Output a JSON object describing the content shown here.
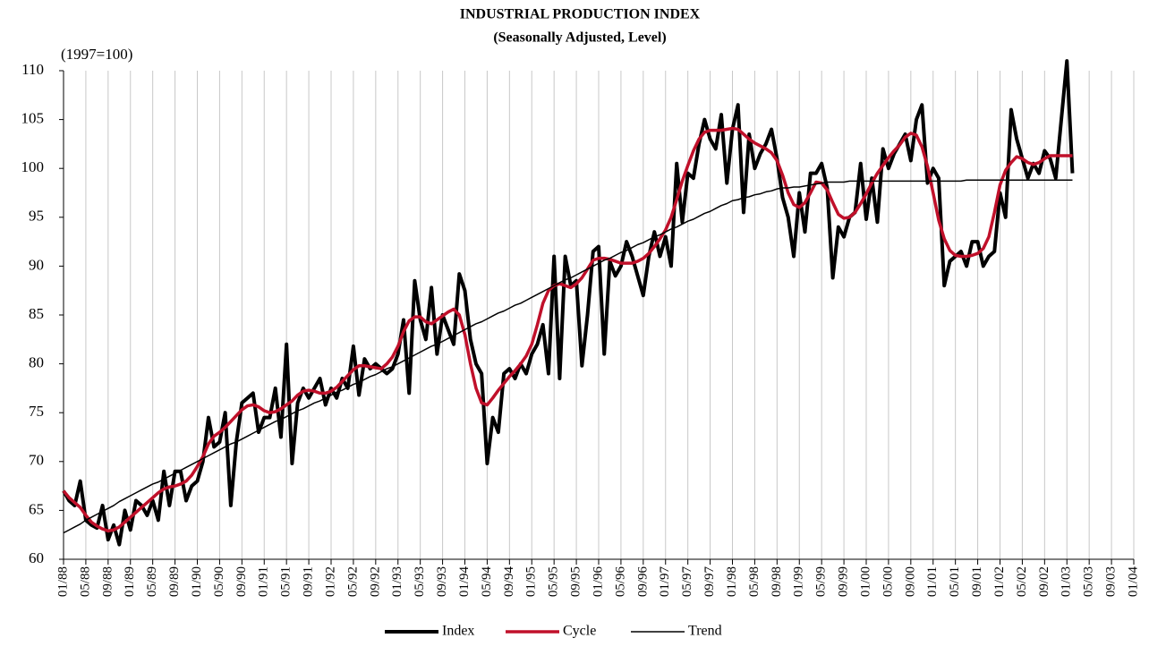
{
  "chart_data": {
    "type": "line",
    "title": "INDUSTRIAL PRODUCTION INDEX",
    "subtitle": "(Seasonally Adjusted, Level)",
    "y_label": "(1997=100)",
    "ylim": [
      60,
      110
    ],
    "yticks": [
      60,
      65,
      70,
      75,
      80,
      85,
      90,
      95,
      100,
      105,
      110
    ],
    "grid": true,
    "legend": "bottom",
    "categories": [
      "01/88",
      null,
      null,
      null,
      "05/88",
      null,
      null,
      null,
      "09/88",
      null,
      null,
      null,
      "01/89",
      null,
      null,
      null,
      "05/89",
      null,
      null,
      null,
      "09/89",
      null,
      null,
      null,
      "01/90",
      null,
      null,
      null,
      "05/90",
      null,
      null,
      null,
      "09/90",
      null,
      null,
      null,
      "01/91",
      null,
      null,
      null,
      "05/91",
      null,
      null,
      null,
      "09/91",
      null,
      null,
      null,
      "01/92",
      null,
      null,
      null,
      "05/92",
      null,
      null,
      null,
      "09/92",
      null,
      null,
      null,
      "01/93",
      null,
      null,
      null,
      "05/93",
      null,
      null,
      null,
      "09/93",
      null,
      null,
      null,
      "01/94",
      null,
      null,
      null,
      "05/94",
      null,
      null,
      null,
      "09/94",
      null,
      null,
      null,
      "01/95",
      null,
      null,
      null,
      "05/95",
      null,
      null,
      null,
      "09/95",
      null,
      null,
      null,
      "01/96",
      null,
      null,
      null,
      "05/96",
      null,
      null,
      null,
      "09/96",
      null,
      null,
      null,
      "01/97",
      null,
      null,
      null,
      "05/97",
      null,
      null,
      null,
      "09/97",
      null,
      null,
      null,
      "01/98",
      null,
      null,
      null,
      "05/98",
      null,
      null,
      null,
      "09/98",
      null,
      null,
      null,
      "01/99",
      null,
      null,
      null,
      "05/99",
      null,
      null,
      null,
      "09/99",
      null,
      null,
      null,
      "01/00",
      null,
      null,
      null,
      "05/00",
      null,
      null,
      null,
      "09/00",
      null,
      null,
      null,
      "01/01",
      null,
      null,
      null,
      "05/01",
      null,
      null,
      null,
      "09/01",
      null,
      null,
      null,
      "01/02",
      null,
      null,
      null,
      "05/02",
      null,
      null,
      null,
      "09/02",
      null,
      null,
      null,
      "01/03",
      null,
      null,
      null,
      "05/03",
      null,
      null,
      null,
      "09/03",
      null,
      null,
      null,
      "01/04"
    ],
    "series": [
      {
        "name": "Index",
        "color": "#000000",
        "width": 4,
        "values": [
          67,
          66,
          65.5,
          68,
          64,
          63.5,
          63.2,
          65.5,
          62,
          63.5,
          61.5,
          65,
          63,
          66,
          65.5,
          64.5,
          66,
          64,
          69,
          65.5,
          69,
          69,
          66,
          67.5,
          68,
          70,
          74.5,
          71.5,
          72,
          75,
          65.5,
          72,
          76,
          76.5,
          77,
          73,
          74.5,
          74.5,
          77.5,
          72.5,
          82,
          69.8,
          76,
          77.5,
          76.5,
          77.5,
          78.5,
          75.8,
          77.5,
          76.5,
          78.5,
          77.5,
          81.8,
          76.8,
          80.5,
          79.5,
          80,
          79.5,
          79,
          79.5,
          81,
          84.5,
          77,
          88.5,
          84.5,
          82.5,
          87.8,
          81,
          85,
          83.5,
          82,
          89.2,
          87.5,
          82.5,
          80,
          79,
          69.8,
          74.5,
          73,
          79,
          79.5,
          78.5,
          80,
          79,
          81,
          82,
          84,
          79,
          91,
          78.5,
          91,
          88,
          88.5,
          79.8,
          85,
          91.5,
          92,
          81,
          90.5,
          89,
          90,
          92.5,
          91,
          89,
          87,
          91,
          93.5,
          91,
          93,
          90,
          100.5,
          94.5,
          99.5,
          99,
          102.5,
          105,
          103,
          102,
          105.5,
          98.5,
          104,
          106.5,
          95.5,
          103.5,
          100,
          101.5,
          102.5,
          104,
          101,
          97,
          95,
          91,
          97.5,
          93.5,
          99.5,
          99.5,
          100.5,
          98,
          88.8,
          94,
          93,
          95,
          95.5,
          100.5,
          94.8,
          99,
          94.5,
          102,
          100,
          101.5,
          102.5,
          103.5,
          100.8,
          105,
          106.5,
          98.5,
          100,
          99,
          88,
          90.5,
          91,
          91.5,
          90,
          92.5,
          92.5,
          90,
          91,
          91.5,
          97.5,
          95,
          106,
          103,
          101,
          99,
          100.5,
          99.5,
          101.8,
          101,
          99,
          105,
          111,
          99.5,
          null,
          null,
          null,
          null,
          null,
          null,
          null,
          null,
          null,
          null,
          null
        ]
      },
      {
        "name": "Cycle",
        "color": "#c0102a",
        "width": 3.5,
        "values": [
          67,
          66.3,
          65.8,
          65.3,
          64.5,
          63.8,
          63.4,
          63.1,
          62.9,
          63,
          63.3,
          63.8,
          64.3,
          64.8,
          65.3,
          65.8,
          66.3,
          66.8,
          67.2,
          67.4,
          67.5,
          67.7,
          68,
          68.6,
          69.5,
          70.5,
          71.8,
          72.6,
          73,
          73.5,
          74.1,
          74.7,
          75.3,
          75.7,
          75.8,
          75.6,
          75.2,
          75,
          75.1,
          75.4,
          75.8,
          76.2,
          76.8,
          77.2,
          77.3,
          77.2,
          77,
          77,
          77.2,
          77.6,
          78.2,
          78.8,
          79.4,
          79.8,
          79.8,
          79.7,
          79.6,
          79.5,
          80,
          80.7,
          81.8,
          83.3,
          84.4,
          84.8,
          84.8,
          84.3,
          84.1,
          84.5,
          84.9,
          85.3,
          85.6,
          85,
          83,
          80,
          77.5,
          76,
          75.8,
          76.5,
          77.3,
          78,
          78.7,
          79.3,
          80,
          80.8,
          82,
          84,
          86.2,
          87.5,
          88,
          88.2,
          88,
          87.8,
          88.2,
          88.8,
          89.7,
          90.6,
          90.8,
          90.8,
          90.7,
          90.5,
          90.3,
          90.3,
          90.3,
          90.5,
          90.8,
          91.3,
          92,
          92.8,
          93.7,
          95,
          96.8,
          98.7,
          100.3,
          101.8,
          103,
          103.7,
          103.9,
          103.9,
          103.9,
          104,
          104.1,
          104,
          103.5,
          103,
          102.6,
          102.3,
          102,
          101.6,
          100.8,
          99.3,
          97.5,
          96.3,
          96,
          96.5,
          97.5,
          98.6,
          98.5,
          97.8,
          96.5,
          95.3,
          94.9,
          95,
          95.5,
          96.4,
          97.4,
          98.5,
          99.5,
          100.3,
          101.1,
          101.8,
          102.4,
          103.2,
          103.6,
          103.4,
          102.2,
          100.2,
          97.5,
          94.7,
          92.8,
          91.6,
          91.1,
          91,
          91,
          91.1,
          91.3,
          91.8,
          93,
          95.5,
          98.3,
          99.8,
          100.6,
          101.2,
          101,
          100.6,
          100.4,
          100.6,
          101,
          101.3,
          101.3,
          101.3,
          101.3,
          101.3,
          null,
          null,
          null,
          null,
          null,
          null,
          null,
          null,
          null,
          null,
          null
        ]
      },
      {
        "name": "Trend",
        "color": "#000000",
        "width": 1.5,
        "values": [
          62.7,
          63.0,
          63.3,
          63.6,
          64.0,
          64.3,
          64.6,
          64.9,
          65.2,
          65.5,
          65.9,
          66.2,
          66.5,
          66.8,
          67.1,
          67.4,
          67.7,
          67.9,
          68.2,
          68.5,
          68.8,
          69.1,
          69.4,
          69.7,
          70.0,
          70.3,
          70.6,
          70.9,
          71.2,
          71.5,
          71.8,
          72.0,
          72.3,
          72.6,
          72.9,
          73.2,
          73.5,
          73.8,
          74.1,
          74.3,
          74.6,
          74.9,
          75.2,
          75.4,
          75.7,
          76.0,
          76.2,
          76.5,
          76.8,
          77.1,
          77.3,
          77.6,
          77.9,
          78.1,
          78.4,
          78.7,
          78.9,
          79.2,
          79.5,
          79.7,
          80.0,
          80.3,
          80.6,
          80.9,
          81.2,
          81.5,
          81.8,
          82.0,
          82.3,
          82.6,
          82.9,
          83.2,
          83.5,
          83.8,
          84.1,
          84.3,
          84.6,
          84.9,
          85.2,
          85.4,
          85.7,
          86.0,
          86.2,
          86.5,
          86.8,
          87.1,
          87.4,
          87.7,
          88.0,
          88.3,
          88.6,
          88.8,
          89.1,
          89.4,
          89.7,
          90.0,
          90.3,
          90.6,
          90.8,
          91.1,
          91.4,
          91.6,
          91.9,
          92.2,
          92.4,
          92.7,
          93.0,
          93.2,
          93.5,
          93.8,
          94.0,
          94.3,
          94.6,
          94.8,
          95.1,
          95.4,
          95.6,
          95.9,
          96.2,
          96.4,
          96.7,
          96.8,
          97.0,
          97.1,
          97.3,
          97.4,
          97.6,
          97.7,
          97.9,
          98.0,
          98.0,
          98.1,
          98.1,
          98.2,
          98.3,
          98.4,
          98.5,
          98.6,
          98.6,
          98.6,
          98.6,
          98.7,
          98.7,
          98.7,
          98.7,
          98.7,
          98.7,
          98.7,
          98.7,
          98.7,
          98.7,
          98.7,
          98.7,
          98.7,
          98.7,
          98.7,
          98.7,
          98.7,
          98.7,
          98.7,
          98.7,
          98.7,
          98.8,
          98.8,
          98.8,
          98.8,
          98.8,
          98.8,
          98.8,
          98.8,
          98.8,
          98.8,
          98.8,
          98.8,
          98.8,
          98.8,
          98.8,
          98.8,
          98.8,
          98.8,
          98.8,
          98.8,
          null,
          null,
          null,
          null,
          null,
          null,
          null,
          null,
          null,
          null,
          null
        ]
      }
    ]
  }
}
